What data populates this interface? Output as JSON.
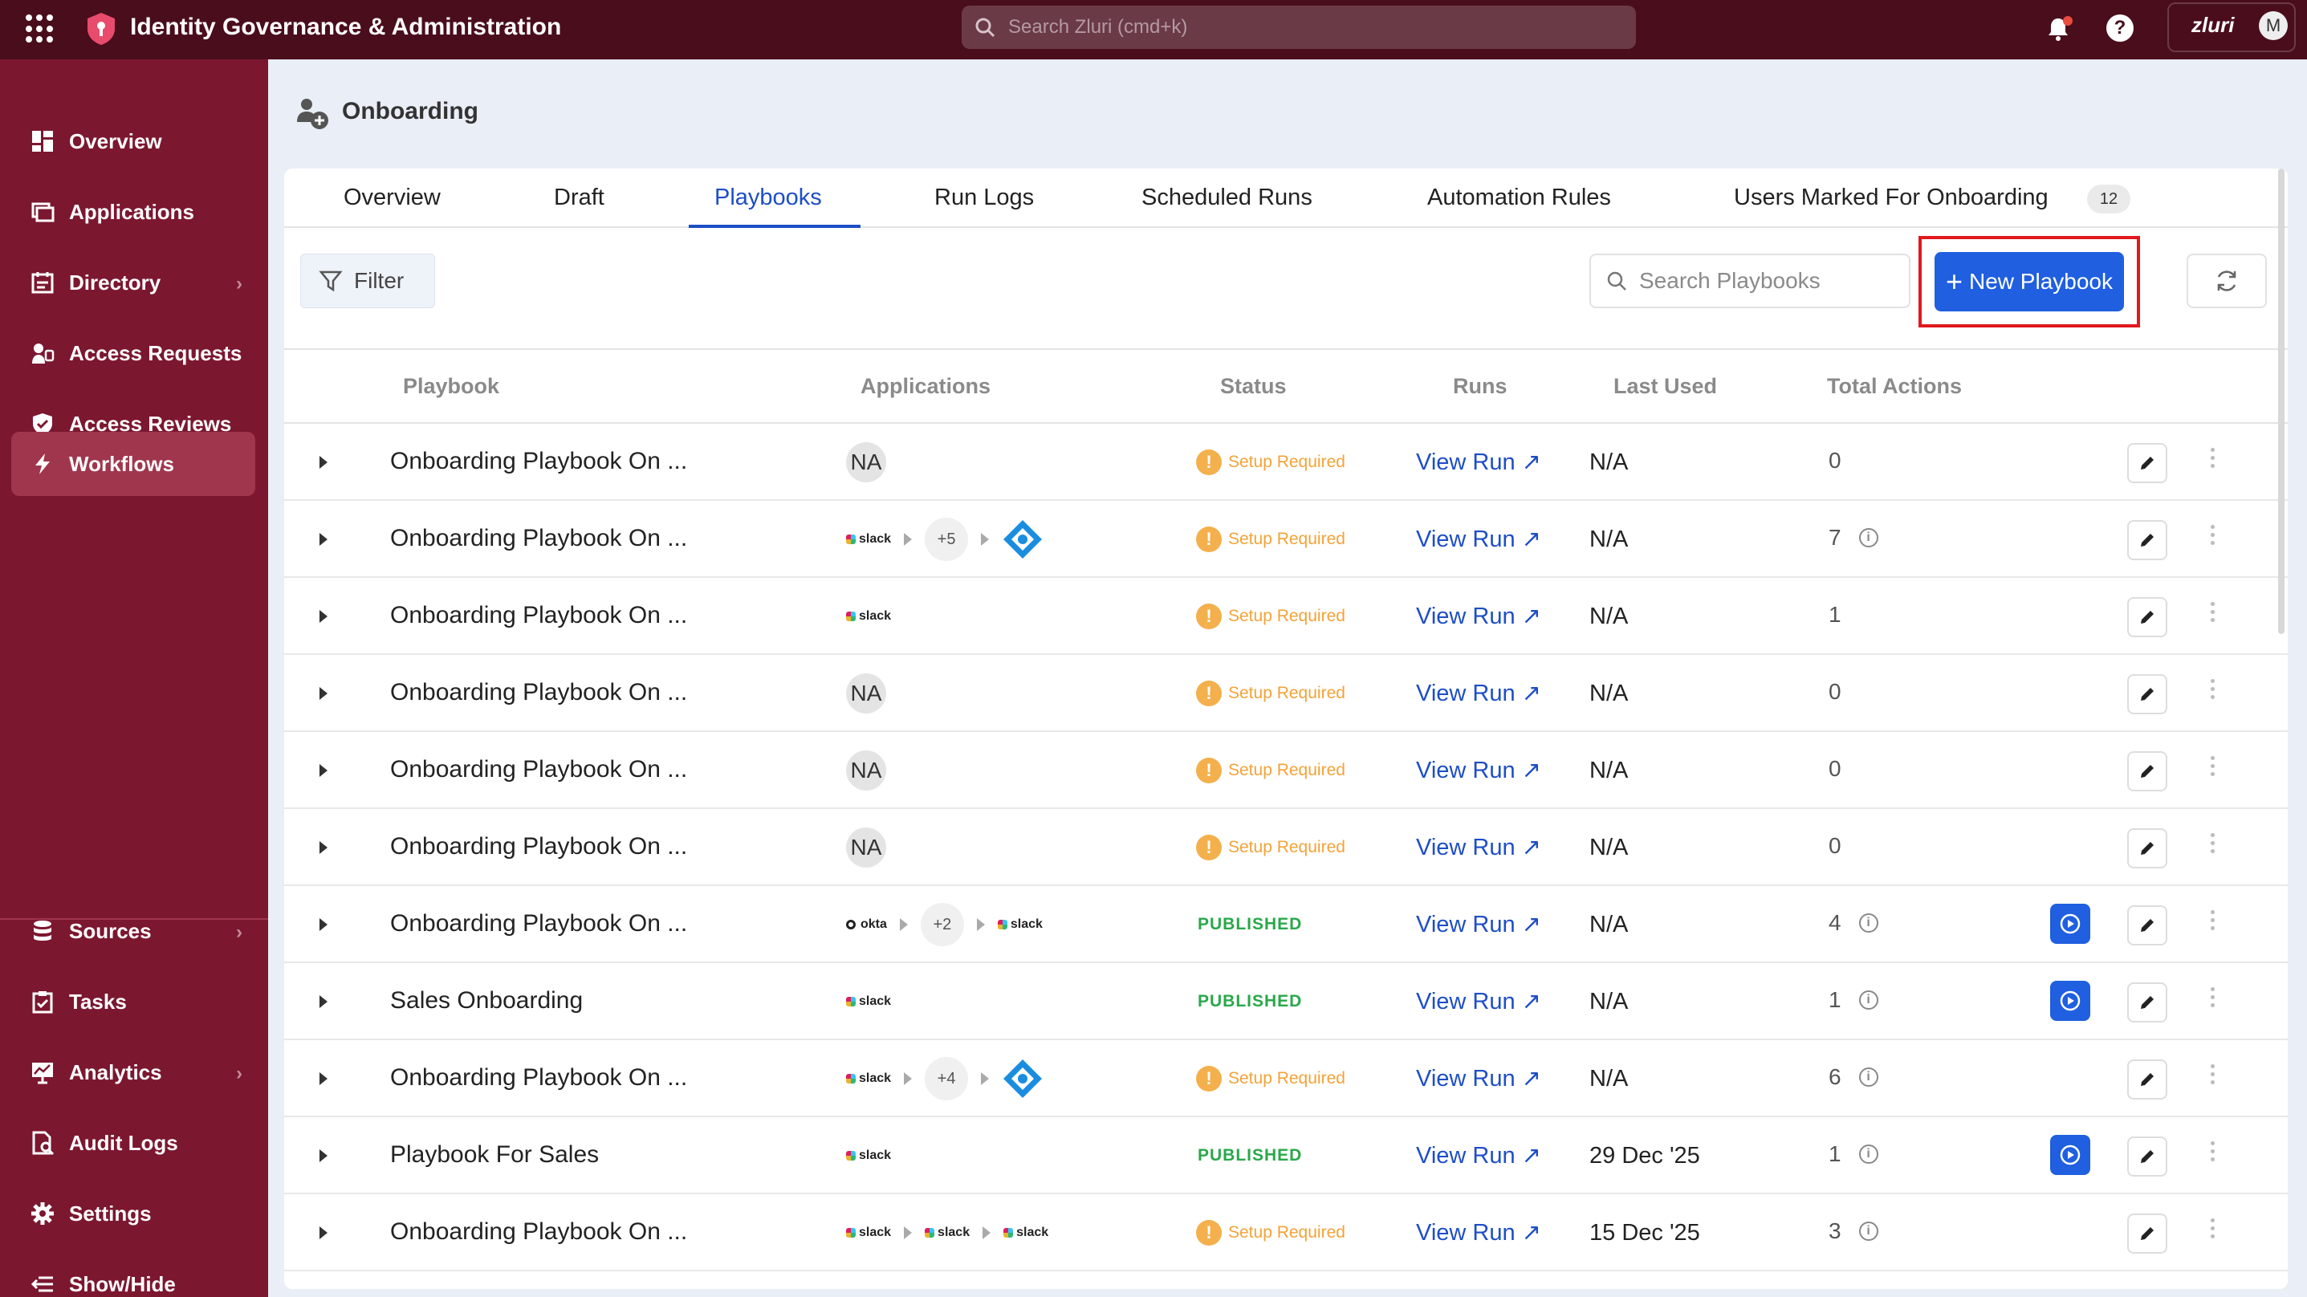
{
  "app": {
    "title": "Identity Governance & Administration",
    "search_placeholder": "Search Zluri (cmd+k)",
    "org_name": "zluri",
    "avatar_initial": "M"
  },
  "sidebar": {
    "items": [
      {
        "label": "Overview",
        "icon": "dashboard-icon"
      },
      {
        "label": "Applications",
        "icon": "applications-icon"
      },
      {
        "label": "Directory",
        "icon": "directory-icon"
      },
      {
        "label": "Access Requests",
        "icon": "access-requests-icon"
      },
      {
        "label": "Access Reviews",
        "icon": "shield-check-icon"
      },
      {
        "label": "Workflows",
        "icon": "bolt-icon",
        "active": true
      }
    ],
    "bottom_items": [
      {
        "label": "Sources",
        "icon": "database-icon"
      },
      {
        "label": "Tasks",
        "icon": "tasks-icon"
      },
      {
        "label": "Analytics",
        "icon": "analytics-icon"
      },
      {
        "label": "Audit Logs",
        "icon": "audit-logs-icon"
      },
      {
        "label": "Settings",
        "icon": "gear-icon"
      },
      {
        "label": "Show/Hide",
        "icon": "collapse-icon"
      }
    ]
  },
  "page": {
    "title": "Onboarding"
  },
  "tabs": [
    {
      "label": "Overview"
    },
    {
      "label": "Draft"
    },
    {
      "label": "Playbooks",
      "active": true
    },
    {
      "label": "Run Logs"
    },
    {
      "label": "Scheduled Runs"
    },
    {
      "label": "Automation Rules"
    },
    {
      "label": "Users Marked For Onboarding",
      "badge": "12"
    }
  ],
  "toolbar": {
    "filter_label": "Filter",
    "search_placeholder": "Search Playbooks",
    "new_playbook_label": "New Playbook"
  },
  "table": {
    "headers": {
      "playbook": "Playbook",
      "applications": "Applications",
      "status": "Status",
      "runs": "Runs",
      "last_used": "Last Used",
      "total_actions": "Total Actions"
    },
    "view_run_label": "View Run ↗",
    "rows": [
      {
        "name": "Onboarding Playbook On ...",
        "apps": "NA",
        "status": "Setup Required",
        "last_used": "N/A",
        "total_actions": "0"
      },
      {
        "name": "Onboarding Playbook On ...",
        "apps": "slack,+5,azure",
        "plus": "+5",
        "status": "Setup Required",
        "last_used": "N/A",
        "total_actions": "7"
      },
      {
        "name": "Onboarding Playbook On ...",
        "apps": "slack",
        "status": "Setup Required",
        "last_used": "N/A",
        "total_actions": "1"
      },
      {
        "name": "Onboarding Playbook On ...",
        "apps": "NA",
        "status": "Setup Required",
        "last_used": "N/A",
        "total_actions": "0"
      },
      {
        "name": "Onboarding Playbook On ...",
        "apps": "NA",
        "status": "Setup Required",
        "last_used": "N/A",
        "total_actions": "0"
      },
      {
        "name": "Onboarding Playbook On ...",
        "apps": "NA",
        "status": "Setup Required",
        "last_used": "N/A",
        "total_actions": "0"
      },
      {
        "name": "Onboarding Playbook On ...",
        "apps": "okta,+2,slack",
        "plus": "+2",
        "status": "PUBLISHED",
        "last_used": "N/A",
        "total_actions": "4"
      },
      {
        "name": "Sales Onboarding",
        "apps": "slack",
        "status": "PUBLISHED",
        "last_used": "N/A",
        "total_actions": "1"
      },
      {
        "name": "Onboarding Playbook On ...",
        "apps": "slack,+4,azure",
        "plus": "+4",
        "status": "Setup Required",
        "last_used": "N/A",
        "total_actions": "6"
      },
      {
        "name": "Playbook For Sales",
        "apps": "slack",
        "status": "PUBLISHED",
        "last_used": "29 Dec '25",
        "total_actions": "1"
      },
      {
        "name": "Onboarding Playbook On ...",
        "apps": "slack,slack,slack",
        "status": "Setup Required",
        "last_used": "15 Dec '25",
        "total_actions": "3"
      }
    ]
  },
  "app_labels": {
    "slack": "slack",
    "okta": "okta",
    "na": "NA"
  },
  "colors": {
    "topbar": "#4a0d1c",
    "sidebar": "#7c1730",
    "sidebar_active": "#a0364d",
    "accent": "#1f5fe0",
    "published": "#2aa84a",
    "setup_required": "#f3a338",
    "highlight": "#e1181c"
  }
}
